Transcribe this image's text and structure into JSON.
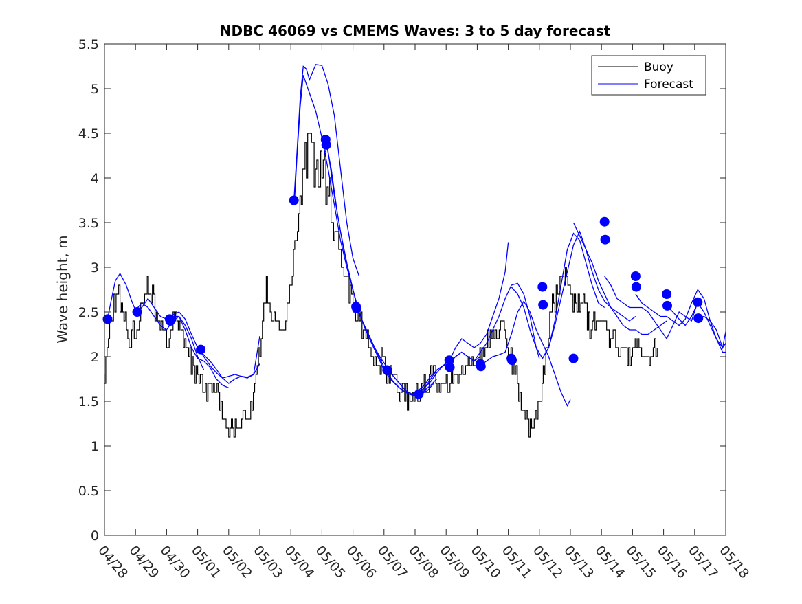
{
  "chart_data": {
    "type": "line",
    "title": "NDBC 46069 vs CMEMS Waves: 3 to 5 day forecast",
    "xlabel": "",
    "ylabel": "Wave height, m",
    "x_tick_labels": [
      "04/28",
      "04/29",
      "04/30",
      "05/01",
      "05/02",
      "05/03",
      "05/04",
      "05/05",
      "05/06",
      "05/07",
      "05/08",
      "05/09",
      "05/10",
      "05/11",
      "05/12",
      "05/13",
      "05/14",
      "05/15",
      "05/16",
      "05/17",
      "05/18"
    ],
    "x_range_days": [
      0,
      20
    ],
    "ylim": [
      0,
      5.5
    ],
    "y_ticks": [
      0,
      0.5,
      1,
      1.5,
      2,
      2.5,
      3,
      3.5,
      4,
      4.5,
      5,
      5.5
    ],
    "y_tick_labels": [
      "0",
      "0.5",
      "1",
      "1.5",
      "2",
      "2.5",
      "3",
      "3.5",
      "4",
      "4.5",
      "5",
      "5.5"
    ],
    "grid": false,
    "legend": {
      "placement": "top-right",
      "entries": [
        {
          "name": "Buoy",
          "color": "#000000"
        },
        {
          "name": "Forecast",
          "color": "#0000ff"
        }
      ]
    },
    "colors": {
      "buoy": "#000000",
      "forecast": "#0000ff",
      "axes": "#262626"
    },
    "buoy_keypoints": [
      [
        0.0,
        1.8
      ],
      [
        0.2,
        2.4
      ],
      [
        0.4,
        2.7
      ],
      [
        0.6,
        2.5
      ],
      [
        0.8,
        2.2
      ],
      [
        1.0,
        2.3
      ],
      [
        1.2,
        2.6
      ],
      [
        1.4,
        2.8
      ],
      [
        1.6,
        2.6
      ],
      [
        1.8,
        2.3
      ],
      [
        2.0,
        2.15
      ],
      [
        2.2,
        2.4
      ],
      [
        2.4,
        2.3
      ],
      [
        2.6,
        2.1
      ],
      [
        2.8,
        1.9
      ],
      [
        3.0,
        1.8
      ],
      [
        3.2,
        1.7
      ],
      [
        3.4,
        1.6
      ],
      [
        3.6,
        1.7
      ],
      [
        3.8,
        1.45
      ],
      [
        4.0,
        1.25
      ],
      [
        4.2,
        1.2
      ],
      [
        4.4,
        1.3
      ],
      [
        4.6,
        1.25
      ],
      [
        4.8,
        1.6
      ],
      [
        5.0,
        2.1
      ],
      [
        5.2,
        2.8
      ],
      [
        5.4,
        2.4
      ],
      [
        5.6,
        2.3
      ],
      [
        5.8,
        2.25
      ],
      [
        6.0,
        2.9
      ],
      [
        6.2,
        3.4
      ],
      [
        6.4,
        4.2
      ],
      [
        6.6,
        4.5
      ],
      [
        6.8,
        4.1
      ],
      [
        7.0,
        4.2
      ],
      [
        7.2,
        3.8
      ],
      [
        7.4,
        3.5
      ],
      [
        7.6,
        3.1
      ],
      [
        7.8,
        2.85
      ],
      [
        8.0,
        2.6
      ],
      [
        8.2,
        2.4
      ],
      [
        8.4,
        2.3
      ],
      [
        8.6,
        2.1
      ],
      [
        8.8,
        2.0
      ],
      [
        9.0,
        1.9
      ],
      [
        9.2,
        1.8
      ],
      [
        9.4,
        1.7
      ],
      [
        9.6,
        1.6
      ],
      [
        9.8,
        1.55
      ],
      [
        10.0,
        1.55
      ],
      [
        10.2,
        1.65
      ],
      [
        10.4,
        1.75
      ],
      [
        10.6,
        1.8
      ],
      [
        10.8,
        1.7
      ],
      [
        11.0,
        1.75
      ],
      [
        11.2,
        1.75
      ],
      [
        11.4,
        1.85
      ],
      [
        11.6,
        1.8
      ],
      [
        11.8,
        1.9
      ],
      [
        12.0,
        1.9
      ],
      [
        12.2,
        2.05
      ],
      [
        12.4,
        2.2
      ],
      [
        12.6,
        2.3
      ],
      [
        12.8,
        2.3
      ],
      [
        13.0,
        2.1
      ],
      [
        13.2,
        1.8
      ],
      [
        13.4,
        1.5
      ],
      [
        13.6,
        1.25
      ],
      [
        13.8,
        1.3
      ],
      [
        14.0,
        1.4
      ],
      [
        14.2,
        2.0
      ],
      [
        14.4,
        2.5
      ],
      [
        14.6,
        2.8
      ],
      [
        14.8,
        2.9
      ],
      [
        15.0,
        2.7
      ],
      [
        15.2,
        2.6
      ],
      [
        15.4,
        2.6
      ],
      [
        15.6,
        2.4
      ],
      [
        15.8,
        2.3
      ],
      [
        16.0,
        2.45
      ],
      [
        16.2,
        2.3
      ],
      [
        16.4,
        2.2
      ],
      [
        16.6,
        2.1
      ],
      [
        16.8,
        2.0
      ],
      [
        17.0,
        2.05
      ],
      [
        17.2,
        2.1
      ],
      [
        17.4,
        1.95
      ],
      [
        17.6,
        2.0
      ],
      [
        17.8,
        2.1
      ]
    ],
    "buoy_noise_amplitude": 0.14,
    "forecast_series": [
      {
        "x": [
          0.1,
          0.2,
          0.35,
          0.5,
          0.7,
          0.9,
          1.0,
          1.2,
          1.4,
          1.6,
          1.8,
          2.0,
          2.2,
          2.4,
          2.6,
          2.8,
          3.0,
          3.2
        ],
        "y": [
          2.42,
          2.6,
          2.85,
          2.93,
          2.8,
          2.6,
          2.52,
          2.6,
          2.55,
          2.45,
          2.35,
          2.3,
          2.4,
          2.45,
          2.35,
          2.2,
          2.0,
          1.85
        ]
      },
      {
        "x": [
          1.05,
          1.2,
          1.4,
          1.6,
          1.8,
          2.0,
          2.2,
          2.4,
          2.6,
          2.8,
          3.0,
          3.2,
          3.4,
          3.6,
          3.8,
          4.0
        ],
        "y": [
          2.5,
          2.55,
          2.65,
          2.55,
          2.45,
          2.42,
          2.45,
          2.45,
          2.3,
          2.1,
          1.98,
          1.95,
          1.88,
          1.75,
          1.68,
          1.65
        ]
      },
      {
        "x": [
          2.05,
          2.2,
          2.4,
          2.6,
          2.8,
          3.0,
          3.2,
          3.4,
          3.6,
          3.8,
          4.0,
          4.2,
          4.4,
          4.6,
          4.8,
          5.0
        ],
        "y": [
          2.42,
          2.47,
          2.5,
          2.42,
          2.25,
          2.1,
          2.0,
          1.9,
          1.82,
          1.76,
          1.78,
          1.8,
          1.78,
          1.76,
          1.8,
          1.92
        ]
      },
      {
        "x": [
          3.05,
          3.2,
          3.4,
          3.6,
          3.8,
          4.0,
          4.2,
          4.4,
          4.6,
          4.8,
          5.0
        ],
        "y": [
          2.08,
          2.02,
          1.95,
          1.86,
          1.76,
          1.7,
          1.75,
          1.78,
          1.77,
          1.8,
          2.23
        ]
      },
      {
        "x": [
          6.1,
          6.2,
          6.3,
          6.4,
          6.5,
          6.6,
          6.8,
          7.0,
          7.2,
          7.4,
          7.6,
          7.8,
          8.0,
          8.2
        ],
        "y": [
          3.75,
          4.3,
          4.9,
          5.25,
          5.22,
          5.1,
          5.27,
          5.26,
          5.05,
          4.7,
          4.1,
          3.5,
          3.1,
          2.9
        ]
      },
      {
        "x": [
          6.12,
          6.2,
          6.3,
          6.4,
          6.6,
          6.8,
          7.0,
          7.2,
          7.4,
          7.6,
          7.8,
          8.0
        ],
        "y": [
          3.75,
          4.25,
          4.8,
          5.15,
          4.95,
          4.75,
          4.45,
          4.1,
          3.7,
          3.3,
          3.0,
          2.75
        ]
      },
      {
        "x": [
          7.1,
          7.2,
          7.4,
          7.6,
          7.8,
          8.0,
          8.2,
          8.4,
          8.6,
          8.8,
          9.0,
          9.2,
          9.4,
          9.6,
          9.8,
          10.0,
          10.2,
          10.4,
          10.6
        ],
        "y": [
          4.43,
          4.3,
          3.8,
          3.4,
          3.05,
          2.75,
          2.5,
          2.3,
          2.15,
          2.0,
          1.85,
          1.75,
          1.68,
          1.62,
          1.58,
          1.56,
          1.58,
          1.62,
          1.7
        ]
      },
      {
        "x": [
          7.15,
          7.3,
          7.5,
          7.7,
          7.9,
          8.1,
          8.3,
          8.5,
          8.7,
          8.9,
          9.1,
          9.3,
          9.5,
          9.7,
          9.9,
          10.1,
          10.3,
          10.5,
          10.7
        ],
        "y": [
          4.37,
          4.1,
          3.6,
          3.2,
          2.9,
          2.6,
          2.4,
          2.25,
          2.1,
          1.95,
          1.82,
          1.72,
          1.65,
          1.6,
          1.57,
          1.58,
          1.62,
          1.68,
          1.75
        ]
      },
      {
        "x": [
          8.1,
          8.3,
          8.5,
          8.7,
          8.9,
          9.1,
          9.3,
          9.5,
          9.7,
          9.9,
          10.1,
          10.3,
          10.5,
          10.7,
          10.9,
          11.1
        ],
        "y": [
          2.56,
          2.4,
          2.25,
          2.1,
          1.98,
          1.88,
          1.78,
          1.7,
          1.62,
          1.58,
          1.6,
          1.65,
          1.72,
          1.82,
          1.9,
          1.95
        ]
      },
      {
        "x": [
          9.1,
          9.3,
          9.5,
          9.7,
          9.9,
          10.1,
          10.3,
          10.5,
          10.7,
          10.9,
          11.1,
          11.3,
          11.5,
          11.7,
          11.9,
          12.1
        ],
        "y": [
          1.85,
          1.78,
          1.7,
          1.62,
          1.58,
          1.62,
          1.68,
          1.78,
          1.85,
          1.9,
          1.92,
          2.0,
          2.05,
          2.0,
          1.95,
          2.0
        ]
      },
      {
        "x": [
          10.1,
          10.3,
          10.5,
          10.7,
          10.9,
          11.1,
          11.3,
          11.5,
          11.7,
          11.9,
          12.1,
          12.3,
          12.5,
          12.7,
          12.9,
          13.0
        ],
        "y": [
          1.58,
          1.65,
          1.75,
          1.85,
          1.9,
          1.95,
          2.1,
          2.2,
          2.15,
          2.1,
          2.15,
          2.25,
          2.45,
          2.65,
          2.95,
          3.28
        ]
      },
      {
        "x": [
          11.1,
          11.3,
          11.5,
          11.7,
          11.9,
          12.1,
          12.3,
          12.5,
          12.7,
          12.9,
          13.1,
          13.3,
          13.5,
          13.7,
          13.9,
          14.0
        ],
        "y": [
          1.95,
          2.0,
          2.05,
          2.0,
          1.95,
          2.05,
          2.15,
          2.3,
          2.45,
          2.65,
          2.8,
          2.82,
          2.7,
          2.45,
          2.1,
          1.98
        ]
      },
      {
        "x": [
          12.1,
          12.3,
          12.5,
          12.7,
          12.9,
          13.1,
          13.3,
          13.5,
          13.7,
          13.9,
          14.1,
          14.3,
          14.5,
          14.7,
          14.9,
          15.0
        ],
        "y": [
          1.9,
          1.95,
          2.0,
          2.02,
          2.05,
          2.25,
          2.5,
          2.62,
          2.5,
          2.3,
          2.15,
          2.0,
          1.8,
          1.6,
          1.45,
          1.52
        ]
      },
      {
        "x": [
          13.1,
          13.3,
          13.5,
          13.7,
          13.9,
          14.1,
          14.3,
          14.5,
          14.7,
          14.9,
          15.1,
          15.3,
          15.5,
          15.7,
          15.9,
          16.1
        ],
        "y": [
          2.78,
          2.7,
          2.55,
          2.3,
          2.1,
          1.98,
          2.1,
          2.4,
          2.8,
          3.2,
          3.38,
          3.3,
          3.05,
          2.8,
          2.6,
          2.55
        ]
      },
      {
        "x": [
          14.1,
          14.3,
          14.5,
          14.7,
          14.9,
          15.1,
          15.3,
          15.5,
          15.7,
          15.9,
          16.1,
          16.3,
          16.5,
          16.7,
          16.9,
          17.1
        ],
        "y": [
          1.98,
          2.1,
          2.35,
          2.65,
          2.95,
          3.25,
          3.4,
          3.2,
          2.95,
          2.75,
          2.62,
          2.55,
          2.5,
          2.45,
          2.4,
          2.45
        ]
      },
      {
        "x": [
          15.1,
          15.3,
          15.5,
          15.7,
          15.9,
          16.1,
          16.3,
          16.5,
          16.7,
          16.9,
          17.1,
          17.3,
          17.5,
          17.7,
          17.9,
          18.1
        ],
        "y": [
          3.5,
          3.35,
          3.2,
          3.05,
          2.85,
          2.7,
          2.55,
          2.45,
          2.35,
          2.3,
          2.3,
          2.25,
          2.25,
          2.3,
          2.35,
          2.4
        ]
      },
      {
        "x": [
          16.1,
          16.3,
          16.5,
          16.7,
          16.9,
          17.1,
          17.3,
          17.5,
          17.7,
          17.9,
          18.1,
          18.3,
          18.5,
          18.7,
          18.9,
          19.1
        ],
        "y": [
          2.9,
          2.8,
          2.65,
          2.6,
          2.55,
          2.55,
          2.55,
          2.5,
          2.4,
          2.3,
          2.2,
          2.35,
          2.5,
          2.45,
          2.4,
          2.61
        ]
      },
      {
        "x": [
          17.1,
          17.3,
          17.5,
          17.7,
          17.9,
          18.1,
          18.3,
          18.5,
          18.7,
          18.9,
          19.1,
          19.3,
          19.5,
          19.7,
          19.9,
          20.0
        ],
        "y": [
          2.7,
          2.6,
          2.55,
          2.5,
          2.45,
          2.45,
          2.4,
          2.35,
          2.42,
          2.6,
          2.75,
          2.65,
          2.4,
          2.2,
          2.1,
          2.15
        ]
      },
      {
        "x": [
          18.1,
          18.3,
          18.5,
          18.7,
          18.9,
          19.1,
          19.3,
          19.5,
          19.7,
          19.9,
          20.0
        ],
        "y": [
          2.57,
          2.5,
          2.42,
          2.35,
          2.45,
          2.6,
          2.5,
          2.35,
          2.2,
          2.05,
          2.05
        ]
      },
      {
        "x": [
          19.1,
          19.3,
          19.5,
          19.7,
          19.9,
          20.0
        ],
        "y": [
          2.43,
          2.45,
          2.4,
          2.3,
          2.1,
          2.28
        ]
      }
    ],
    "forecast_markers": [
      [
        0.1,
        2.42
      ],
      [
        1.05,
        2.5
      ],
      [
        2.1,
        2.42
      ],
      [
        2.12,
        2.4
      ],
      [
        3.1,
        2.08
      ],
      [
        6.1,
        3.75
      ],
      [
        7.12,
        4.43
      ],
      [
        7.14,
        4.37
      ],
      [
        8.1,
        2.56
      ],
      [
        8.12,
        2.54
      ],
      [
        9.1,
        1.85
      ],
      [
        10.12,
        1.58
      ],
      [
        11.1,
        1.96
      ],
      [
        11.12,
        1.88
      ],
      [
        12.1,
        1.92
      ],
      [
        12.12,
        1.89
      ],
      [
        13.1,
        1.98
      ],
      [
        13.12,
        1.96
      ],
      [
        14.1,
        2.78
      ],
      [
        14.12,
        2.58
      ],
      [
        15.1,
        1.98
      ],
      [
        16.1,
        3.51
      ],
      [
        16.12,
        3.31
      ],
      [
        17.1,
        2.9
      ],
      [
        17.12,
        2.78
      ],
      [
        18.1,
        2.7
      ],
      [
        18.12,
        2.57
      ],
      [
        19.1,
        2.61
      ],
      [
        19.12,
        2.43
      ]
    ]
  }
}
